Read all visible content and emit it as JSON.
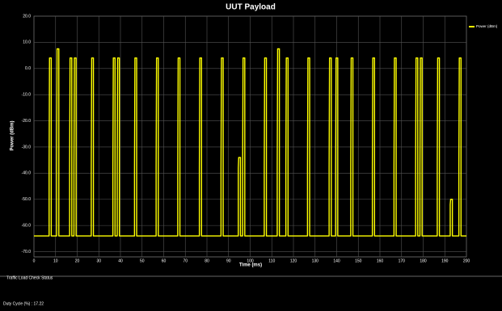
{
  "chart_data": {
    "type": "line",
    "title": "UUT Payload",
    "xlabel": "Time (ms)",
    "ylabel": "Power (dBm)",
    "x": [
      0,
      7,
      7,
      7.2,
      8,
      8,
      10.5,
      10.5,
      10.7,
      11.5,
      11.5,
      16.5,
      16.5,
      16.7,
      17.5,
      17.5,
      18.5,
      18.5,
      18.7,
      19.5,
      19.5,
      26.5,
      26.5,
      26.7,
      27.5,
      27.5,
      36.5,
      36.5,
      36.7,
      37.5,
      37.5,
      38.5,
      38.5,
      38.7,
      39.5,
      39.5,
      46.5,
      46.5,
      46.7,
      47.5,
      47.5,
      56.5,
      56.5,
      56.7,
      57.5,
      57.5,
      66.5,
      66.5,
      66.7,
      67.5,
      67.5,
      76.5,
      76.5,
      76.7,
      77.5,
      77.5,
      86.5,
      86.5,
      86.7,
      87.5,
      87.5,
      94.5,
      94.5,
      94.7,
      95.5,
      95.5,
      96.5,
      96.5,
      96.7,
      97.5,
      97.5,
      106.5,
      106.5,
      106.7,
      107.5,
      107.5,
      112.5,
      112.5,
      112.7,
      113.5,
      113.5,
      116.5,
      116.5,
      116.7,
      117.5,
      117.5,
      126.5,
      126.5,
      126.7,
      127.5,
      127.5,
      136.5,
      136.5,
      136.7,
      137.5,
      137.5,
      139.5,
      139.5,
      139.7,
      140.5,
      140.5,
      146.5,
      146.5,
      146.7,
      147.5,
      147.5,
      156.5,
      156.5,
      156.7,
      157.5,
      157.5,
      166.5,
      166.5,
      166.7,
      167.5,
      167.5,
      176.5,
      176.5,
      176.7,
      177.5,
      177.5,
      178.5,
      178.5,
      178.7,
      179.5,
      179.5,
      186.5,
      186.5,
      186.7,
      187.5,
      187.5,
      192.5,
      192.5,
      192.7,
      193.5,
      193.5,
      196.5,
      196.5,
      196.7,
      197.5,
      197.5,
      200
    ],
    "series": [
      {
        "name": "Power (dBm)",
        "color": "#ffff00",
        "values": [
          -64,
          -64,
          -38,
          4,
          4,
          -64,
          -64,
          -38,
          7.5,
          7.5,
          -64,
          -64,
          -38,
          4,
          4,
          -64,
          -64,
          -38,
          4,
          4,
          -64,
          -64,
          -38,
          4,
          4,
          -64,
          -64,
          -38,
          4,
          4,
          -64,
          -64,
          -38,
          4,
          4,
          -64,
          -64,
          -38,
          4,
          4,
          -64,
          -64,
          -38,
          4,
          4,
          -64,
          -64,
          -38,
          4,
          4,
          -64,
          -64,
          -38,
          4,
          4,
          -64,
          -64,
          -38,
          4,
          4,
          -64,
          -64,
          -38,
          -34,
          -34,
          -64,
          -64,
          -38,
          4,
          4,
          -64,
          -64,
          -38,
          4,
          4,
          -64,
          -64,
          -38,
          7.5,
          7.5,
          -64,
          -64,
          -38,
          4,
          4,
          -64,
          -64,
          -38,
          4,
          4,
          -64,
          -64,
          -38,
          4,
          4,
          -64,
          -64,
          -38,
          4,
          4,
          -64,
          -64,
          -38,
          4,
          4,
          -64,
          -64,
          -38,
          4,
          4,
          -64,
          -64,
          -38,
          4,
          4,
          -64,
          -64,
          -38,
          4,
          4,
          -64,
          -64,
          -38,
          4,
          4,
          -64,
          -64,
          -38,
          4,
          4,
          -64,
          -64,
          -52,
          -50,
          -50,
          -64,
          -64,
          -38,
          4,
          4,
          -64,
          -64
        ]
      }
    ],
    "xlim": [
      0,
      200
    ],
    "xticks": [
      0,
      10,
      20,
      30,
      40,
      50,
      60,
      70,
      80,
      90,
      100,
      110,
      120,
      130,
      140,
      150,
      160,
      170,
      180,
      190,
      200
    ],
    "ylim": [
      -72,
      20
    ],
    "yticks": [
      {
        "value": 20,
        "label": "20.0"
      },
      {
        "value": 10,
        "label": "10.0"
      },
      {
        "value": 0,
        "label": "0.0"
      },
      {
        "value": -10,
        "label": "-10.0"
      },
      {
        "value": -20,
        "label": "-20.0"
      },
      {
        "value": -30,
        "label": "-30.0"
      },
      {
        "value": -40,
        "label": "-40.0"
      },
      {
        "value": -50,
        "label": "-50.0"
      },
      {
        "value": -60,
        "label": "-60.0"
      },
      {
        "value": -70,
        "label": "-70.0"
      }
    ],
    "grid": true,
    "legend": "right"
  },
  "status_panel": {
    "title": "Traffic Load Check Status",
    "duty_cycle": "Duty Cycle (%) : 17.22"
  }
}
